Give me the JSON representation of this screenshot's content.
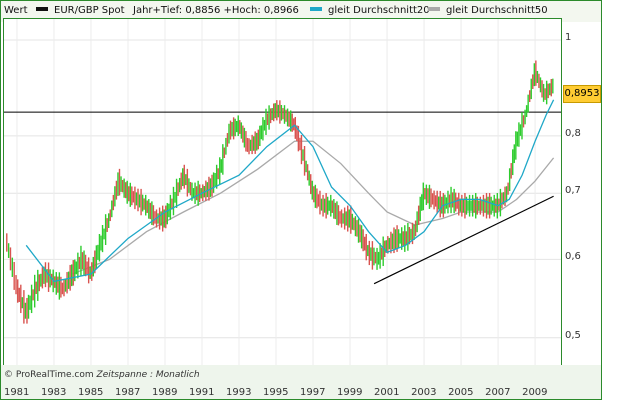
{
  "legend": {
    "wert_label": "Wert",
    "series_label": "EUR/GBP Spot",
    "range_text": "Jahr+Tief: 0,8856 +Hoch: 0,8966",
    "ma20_label": "gleit Durchschnitt20",
    "ma50_label": "gleit Durchschnitt50"
  },
  "price_badge": "0,8953",
  "footer": {
    "credit": "© ProRealTime.com",
    "timespan": "Zeitspanne : Monatlich"
  },
  "colors": {
    "up": "#2ecc2e",
    "down": "#d9534f",
    "ma20": "#1fa8c8",
    "ma50": "#a9a9a9",
    "frame": "#2b8a2b",
    "badge": "#ffcc33"
  },
  "chart_data": {
    "type": "line",
    "title": "EUR/GBP Spot",
    "y_scale": "log",
    "ylim": [
      0.45,
      1.05
    ],
    "yticks": [
      {
        "value": 1.0,
        "label": "1"
      },
      {
        "value": 0.8,
        "label": "0,8"
      },
      {
        "value": 0.7,
        "label": "0,7"
      },
      {
        "value": 0.6,
        "label": "0,6"
      },
      {
        "value": 0.5,
        "label": "0,5"
      }
    ],
    "xlim": [
      1980.3,
      2010.4
    ],
    "xticks": [
      "1981",
      "1983",
      "1985",
      "1987",
      "1989",
      "1991",
      "1993",
      "1995",
      "1997",
      "1999",
      "2001",
      "2003",
      "2005",
      "2007",
      "2009"
    ],
    "horizontal_line": 0.8453,
    "trendline": {
      "x": [
        2000.3,
        2010.0
      ],
      "y": [
        0.567,
        0.695
      ]
    },
    "series": [
      {
        "name": "EUR/GBP Spot",
        "x": [
          1980.4,
          1981.0,
          1981.5,
          1982.0,
          1982.5,
          1983.0,
          1983.5,
          1984.0,
          1984.5,
          1985.0,
          1985.5,
          1986.0,
          1986.5,
          1987.0,
          1987.5,
          1988.0,
          1988.5,
          1989.0,
          1989.5,
          1990.0,
          1990.5,
          1991.0,
          1991.5,
          1992.0,
          1992.5,
          1993.0,
          1993.5,
          1994.0,
          1994.5,
          1995.0,
          1995.5,
          1996.0,
          1996.5,
          1997.0,
          1997.5,
          1998.0,
          1998.5,
          1999.0,
          1999.5,
          2000.0,
          2000.5,
          2001.0,
          2001.5,
          2002.0,
          2002.5,
          2003.0,
          2003.5,
          2004.0,
          2004.5,
          2005.0,
          2005.5,
          2006.0,
          2006.5,
          2007.0,
          2007.5,
          2008.0,
          2008.5,
          2009.0,
          2009.5,
          2010.0
        ],
        "values": [
          0.63,
          0.56,
          0.53,
          0.56,
          0.58,
          0.57,
          0.56,
          0.58,
          0.6,
          0.58,
          0.62,
          0.66,
          0.72,
          0.7,
          0.69,
          0.68,
          0.66,
          0.66,
          0.69,
          0.73,
          0.7,
          0.7,
          0.71,
          0.74,
          0.81,
          0.82,
          0.78,
          0.79,
          0.83,
          0.85,
          0.84,
          0.82,
          0.76,
          0.7,
          0.68,
          0.68,
          0.66,
          0.66,
          0.64,
          0.61,
          0.6,
          0.62,
          0.63,
          0.63,
          0.64,
          0.7,
          0.69,
          0.68,
          0.69,
          0.68,
          0.68,
          0.68,
          0.68,
          0.68,
          0.7,
          0.79,
          0.84,
          0.93,
          0.88,
          0.9
        ]
      },
      {
        "name": "gleit Durchschnitt20",
        "x": [
          1981.5,
          1983.0,
          1985.0,
          1987.0,
          1989.0,
          1991.0,
          1993.0,
          1994.5,
          1996.0,
          1997.0,
          1998.0,
          1999.0,
          2000.0,
          2001.0,
          2002.0,
          2003.0,
          2004.0,
          2005.0,
          2006.0,
          2007.0,
          2007.6,
          2008.3,
          2009.0,
          2009.6,
          2010.0
        ],
        "values": [
          0.62,
          0.57,
          0.58,
          0.63,
          0.67,
          0.7,
          0.73,
          0.78,
          0.82,
          0.78,
          0.71,
          0.68,
          0.64,
          0.61,
          0.62,
          0.64,
          0.68,
          0.69,
          0.69,
          0.68,
          0.69,
          0.73,
          0.79,
          0.84,
          0.87
        ]
      },
      {
        "name": "gleit Durchschnitt50",
        "x": [
          1984.0,
          1986.0,
          1988.0,
          1990.0,
          1992.0,
          1994.0,
          1996.0,
          1997.0,
          1998.5,
          2000.0,
          2001.0,
          2002.5,
          2004.0,
          2005.0,
          2006.0,
          2007.0,
          2008.0,
          2009.0,
          2010.0
        ],
        "values": [
          0.58,
          0.6,
          0.64,
          0.67,
          0.7,
          0.74,
          0.79,
          0.79,
          0.75,
          0.7,
          0.67,
          0.65,
          0.66,
          0.67,
          0.67,
          0.67,
          0.69,
          0.72,
          0.76
        ]
      }
    ]
  }
}
